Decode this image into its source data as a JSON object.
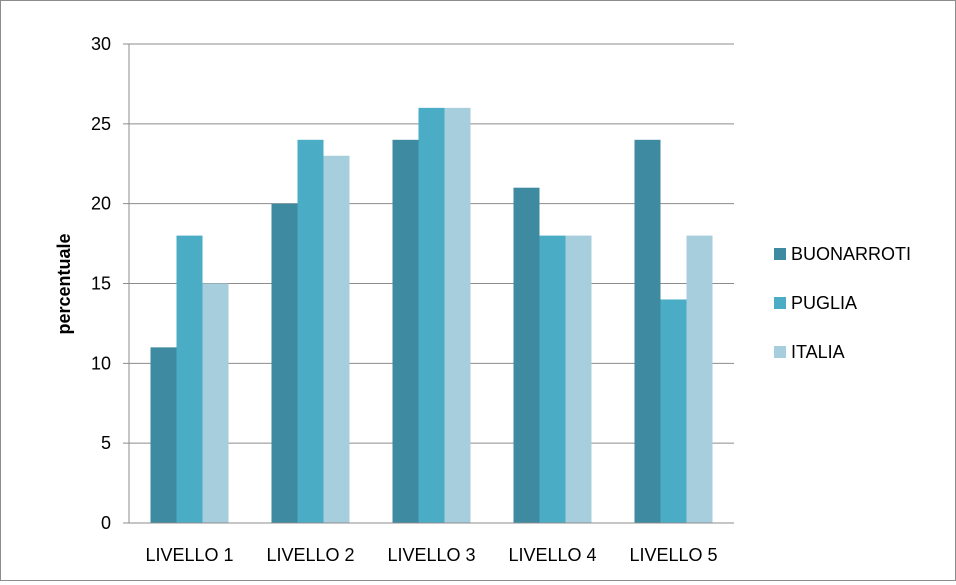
{
  "chart_data": {
    "type": "bar",
    "title": "",
    "xlabel": "",
    "ylabel": "percentuale",
    "ylim": [
      0,
      30
    ],
    "yticks": [
      0,
      5,
      10,
      15,
      20,
      25,
      30
    ],
    "grid": true,
    "legend_position": "right",
    "categories": [
      "LIVELLO 1",
      "LIVELLO 2",
      "LIVELLO 3",
      "LIVELLO 4",
      "LIVELLO 5"
    ],
    "series": [
      {
        "name": "BUONARROTI",
        "color": "#3e8aa0",
        "values": [
          11,
          20,
          24,
          21,
          24
        ]
      },
      {
        "name": "PUGLIA",
        "color": "#4aacc5",
        "values": [
          18,
          24,
          26,
          18,
          14
        ]
      },
      {
        "name": "ITALIA",
        "color": "#a7cedc",
        "values": [
          15,
          23,
          26,
          18,
          18
        ]
      }
    ]
  }
}
